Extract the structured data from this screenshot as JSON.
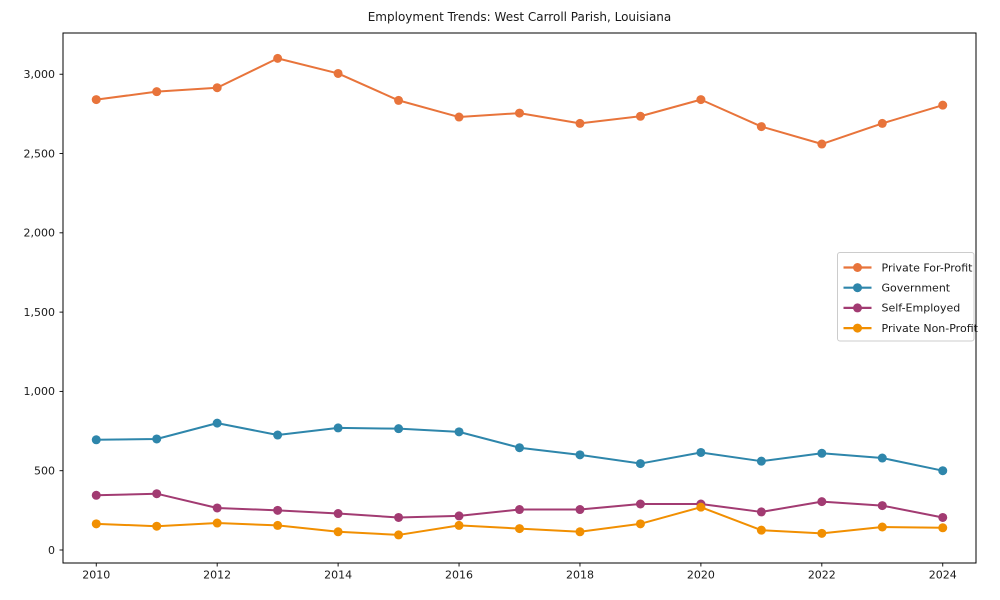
{
  "chart_data": {
    "type": "line",
    "title": "Employment Trends: West Carroll Parish, Louisiana",
    "xlabel": "",
    "ylabel": "",
    "x": [
      2010,
      2011,
      2012,
      2013,
      2014,
      2015,
      2016,
      2017,
      2018,
      2019,
      2020,
      2021,
      2022,
      2023,
      2024
    ],
    "series": [
      {
        "name": "Private For-Profit",
        "color": "#E8743B",
        "values": [
          2840,
          2890,
          2915,
          3100,
          3005,
          2835,
          2730,
          2755,
          2690,
          2735,
          2840,
          2670,
          2560,
          2690,
          2805
        ]
      },
      {
        "name": "Government",
        "color": "#2E86AB",
        "values": [
          695,
          700,
          800,
          725,
          770,
          765,
          745,
          645,
          600,
          545,
          615,
          560,
          610,
          580,
          500
        ]
      },
      {
        "name": "Self-Employed",
        "color": "#A23B72",
        "values": [
          345,
          355,
          265,
          250,
          230,
          205,
          215,
          255,
          255,
          290,
          290,
          240,
          305,
          280,
          205
        ]
      },
      {
        "name": "Private Non-Profit",
        "color": "#F18F01",
        "values": [
          165,
          150,
          170,
          155,
          115,
          95,
          155,
          135,
          115,
          165,
          270,
          125,
          105,
          145,
          140
        ]
      }
    ],
    "xticks": [
      2010,
      2012,
      2014,
      2016,
      2018,
      2020,
      2022,
      2024
    ],
    "xtick_labels": [
      "2010",
      "2012",
      "2014",
      "2016",
      "2018",
      "2020",
      "2022",
      "2024"
    ],
    "yticks": [
      0,
      500,
      1000,
      1500,
      2000,
      2500,
      3000
    ],
    "ytick_labels": [
      "0",
      "500",
      "1,000",
      "1,500",
      "2,000",
      "2,500",
      "3,000"
    ],
    "xlim": [
      2009.45,
      2024.55
    ],
    "ylim": [
      -82,
      3260
    ],
    "grid": false,
    "legend_position": "center-right",
    "marker": "circle",
    "frame": "full-box",
    "background_color": "#ffffff",
    "spine_color": "#000000",
    "legend_border_color": "#cccccc"
  }
}
